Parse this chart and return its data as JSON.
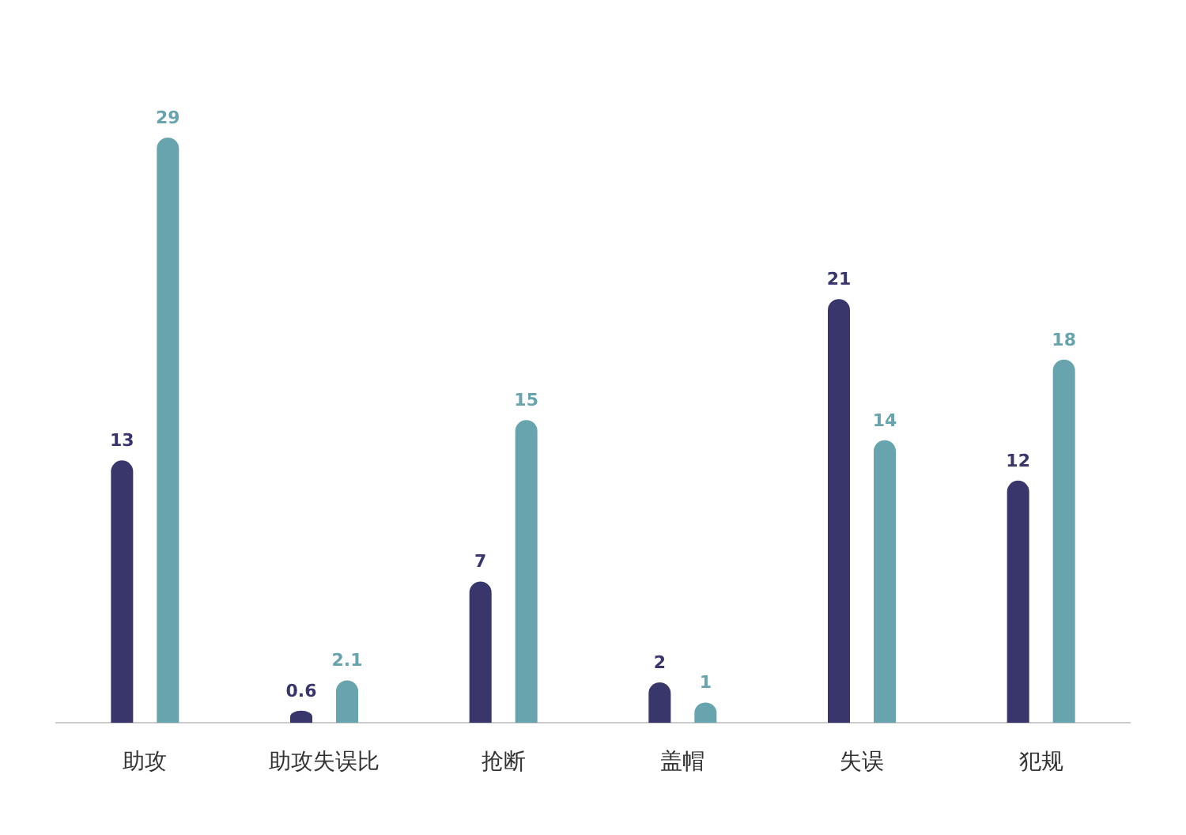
{
  "chart_data": {
    "type": "bar",
    "categories": [
      "助攻",
      "助攻失误比",
      "抢断",
      "盖帽",
      "失误",
      "犯规"
    ],
    "series": [
      {
        "color": "#38366b",
        "values": [
          13,
          0.6,
          7,
          2,
          21,
          12
        ]
      },
      {
        "color": "#67a4ae",
        "values": [
          29,
          2.1,
          15,
          1,
          14,
          18
        ]
      }
    ],
    "data_labels": true
  }
}
